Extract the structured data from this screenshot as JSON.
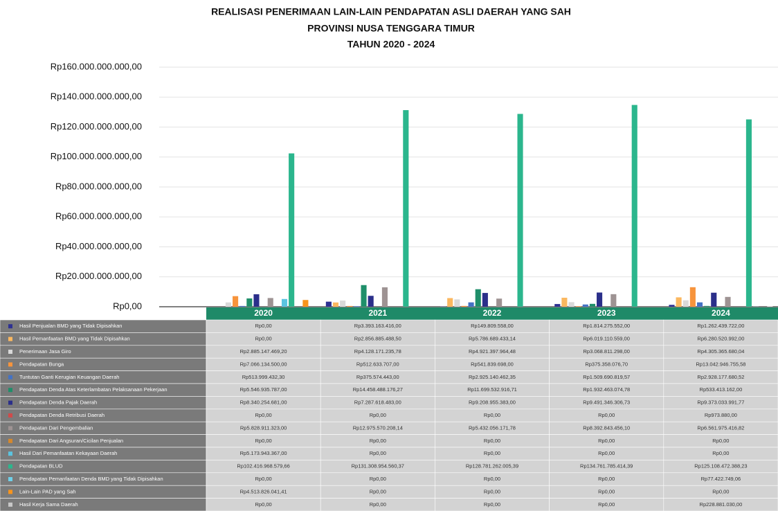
{
  "chart_data": {
    "type": "bar",
    "title": [
      "REALISASI PENERIMAAN LAIN-LAIN PENDAPATAN ASLI DAERAH YANG SAH",
      "PROVINSI NUSA TENGGARA TIMUR",
      "TAHUN 2020 - 2024"
    ],
    "categories": [
      "2020",
      "2021",
      "2022",
      "2023",
      "2024"
    ],
    "ylim": [
      0,
      160000000000
    ],
    "yticks": [
      {
        "value": 0,
        "label": "Rp0,00"
      },
      {
        "value": 20000000000,
        "label": "Rp20.000.000.000,00"
      },
      {
        "value": 40000000000,
        "label": "Rp40.000.000.000,00"
      },
      {
        "value": 60000000000,
        "label": "Rp60.000.000.000,00"
      },
      {
        "value": 80000000000,
        "label": "Rp80.000.000.000,00"
      },
      {
        "value": 100000000000,
        "label": "Rp100.000.000.000,00"
      },
      {
        "value": 120000000000,
        "label": "Rp120.000.000.000,00"
      },
      {
        "value": 140000000000,
        "label": "Rp140.000.000.000,00"
      },
      {
        "value": 160000000000,
        "label": "Rp160.000.000.000,00"
      }
    ],
    "grid": true,
    "series": [
      {
        "name": "Hasil Penjualan BMD yang Tidak Dipisahkan",
        "color": "#2e3192",
        "values": [
          0,
          3393163416.0,
          149809558.0,
          1814275552.0,
          1262439722.0
        ],
        "value_labels": [
          "Rp0,00",
          "Rp3.393.163.416,00",
          "Rp149.809.558,00",
          "Rp1.814.275.552,00",
          "Rp1.262.439.722,00"
        ]
      },
      {
        "name": "Hasil Pemanfaatan BMD yang Tidak Dipisahkan",
        "color": "#fbb860",
        "values": [
          0,
          2856885488.5,
          5786689433.14,
          6019110559.0,
          6280520992.0
        ],
        "value_labels": [
          "Rp0,00",
          "Rp2.856.885.488,50",
          "Rp5.786.689.433,14",
          "Rp6.019.110.559,00",
          "Rp6.280.520.992,00"
        ]
      },
      {
        "name": "Penerimaan Jasa Giro",
        "color": "#d9d9d9",
        "values": [
          2885147469.2,
          4128171235.78,
          4921397964.48,
          3068811298.0,
          4305365680.04
        ],
        "value_labels": [
          "Rp2.885.147.469,20",
          "Rp4.128.171.235,78",
          "Rp4.921.397.964,48",
          "Rp3.068.811.298,00",
          "Rp4.305.365.680,04"
        ]
      },
      {
        "name": "Pendapatan Bunga",
        "color": "#f7943c",
        "values": [
          7066134500.0,
          512633707.0,
          541839698.0,
          375358076.7,
          13042946755.58
        ],
        "value_labels": [
          "Rp7.066.134.500,00",
          "Rp512.633.707,00",
          "Rp541.839.698,00",
          "Rp375.358.076,70",
          "Rp13.042.946.755,58"
        ]
      },
      {
        "name": "Tuntutan Ganti Kerugian Keuangan Daerah",
        "color": "#4472c4",
        "values": [
          513999432.3,
          375574443.0,
          2925140462.35,
          1509690819.57,
          2928177680.52
        ],
        "value_labels": [
          "Rp513.999.432,30",
          "Rp375.574.443,00",
          "Rp2.925.140.462,35",
          "Rp1.509.690.819,57",
          "Rp2.928.177.680,52"
        ]
      },
      {
        "name": "Pendapatan Denda Atas Keterlambatan Pelaksanaan Pekerjaan",
        "color": "#1f8f6a",
        "values": [
          5546935787.0,
          14458488176.27,
          11699532916.71,
          1932463074.78,
          533413162.0
        ],
        "value_labels": [
          "Rp5.546.935.787,00",
          "Rp14.458.488.176,27",
          "Rp11.699.532.916,71",
          "Rp1.932.463.074,78",
          "Rp533.413.162,00"
        ]
      },
      {
        "name": "Pendapatan Denda Pajak Daerah",
        "color": "#2b2f8a",
        "values": [
          8340254681.0,
          7287618483.0,
          9208955383.0,
          9491346306.73,
          9373033991.77
        ],
        "value_labels": [
          "Rp8.340.254.681,00",
          "Rp7.287.618.483,00",
          "Rp9.208.955.383,00",
          "Rp9.491.346.306,73",
          "Rp9.373.033.991,77"
        ]
      },
      {
        "name": "Pendapatan Denda Retribusi Daerah",
        "color": "#d04a4a",
        "values": [
          0,
          0,
          0,
          0,
          973880.0
        ],
        "value_labels": [
          "Rp0,00",
          "Rp0,00",
          "Rp0,00",
          "Rp0,00",
          "Rp973.880,00"
        ]
      },
      {
        "name": "Pendapatan Dari Pengembalian",
        "color": "#9e9393",
        "values": [
          5828911323.0,
          12975570208.14,
          5432056171.78,
          8392843456.1,
          6561975416.82
        ],
        "value_labels": [
          "Rp5.828.911.323,00",
          "Rp12.975.570.208,14",
          "Rp5.432.056.171,78",
          "Rp8.392.843.456,10",
          "Rp6.561.975.416,82"
        ]
      },
      {
        "name": "Pendapatan Dari Angsuran/Cicilan Penjualan",
        "color": "#d4882e",
        "values": [
          0,
          0,
          0,
          0,
          0
        ],
        "value_labels": [
          "Rp0,00",
          "Rp0,00",
          "Rp0,00",
          "Rp0,00",
          "Rp0,00"
        ]
      },
      {
        "name": "Hasil Dari Pemanfaatan Kekayaan Daerah",
        "color": "#5bc4e0",
        "values": [
          5173943367.0,
          0,
          0,
          0,
          0
        ],
        "value_labels": [
          "Rp5.173.943.367,00",
          "Rp0,00",
          "Rp0,00",
          "Rp0,00",
          "Rp0,00"
        ]
      },
      {
        "name": "Pendapatan BLUD",
        "color": "#2bb68d",
        "values": [
          102416968579.66,
          131308954560.37,
          128781262005.39,
          134761785414.39,
          125108472388.23
        ],
        "value_labels": [
          "Rp102.416.968.579,66",
          "Rp131.308.954.560,37",
          "Rp128.781.262.005,39",
          "Rp134.761.785.414,39",
          "Rp125.108.472.388,23"
        ]
      },
      {
        "name": "Pendapatan Pemanfaatan Denda BMD yang Tidak Dipisahkan",
        "color": "#6fd0e8",
        "values": [
          0,
          0,
          0,
          0,
          77422749.06
        ],
        "value_labels": [
          "Rp0,00",
          "Rp0,00",
          "Rp0,00",
          "Rp0,00",
          "Rp77.422.749,06"
        ]
      },
      {
        "name": "Lain-Lain PAD yang Sah",
        "color": "#f7941d",
        "values": [
          4513826041.41,
          0,
          0,
          0,
          0
        ],
        "value_labels": [
          "Rp4.513.826.041,41",
          "Rp0,00",
          "Rp0,00",
          "Rp0,00",
          "Rp0,00"
        ]
      },
      {
        "name": "Hasil Kerja Sama Daerah",
        "color": "#c8c8c8",
        "values": [
          0,
          0,
          0,
          0,
          228881030.0
        ],
        "value_labels": [
          "Rp0,00",
          "Rp0,00",
          "Rp0,00",
          "Rp0,00",
          "Rp228.881.030,00"
        ]
      }
    ]
  }
}
